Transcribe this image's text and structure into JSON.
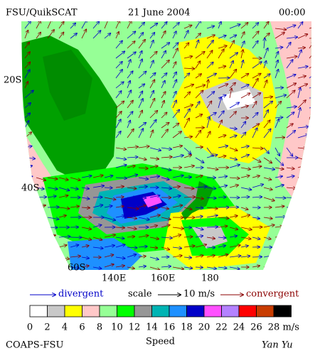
{
  "header": {
    "product": "FSU/QuikSCAT",
    "date": "21 June 2004",
    "time": "00:00"
  },
  "map": {
    "lat_labels": [
      "20S",
      "40S",
      "60S"
    ],
    "lon_labels": [
      "140E",
      "160E",
      "180"
    ]
  },
  "legend": {
    "divergent": "divergent",
    "scale": "scale",
    "scale_value": "10 m/s",
    "convergent": "convergent"
  },
  "colorbar": {
    "labels": [
      "0",
      "2",
      "4",
      "6",
      "8",
      "10",
      "12",
      "14",
      "16",
      "18",
      "20",
      "22",
      "24",
      "26",
      "28"
    ],
    "colors": [
      "#ffffff",
      "#c8c8c8",
      "#ffff00",
      "#ffc8c8",
      "#96ff96",
      "#00ff00",
      "#969696",
      "#00b4b4",
      "#1e90ff",
      "#0000c8",
      "#ff50ff",
      "#b482ff",
      "#ff0000",
      "#c83c00",
      "#000000"
    ],
    "unit": "m/s",
    "title": "Speed"
  },
  "footer": {
    "left": "COAPS-FSU",
    "right": "Yan Yu"
  }
}
